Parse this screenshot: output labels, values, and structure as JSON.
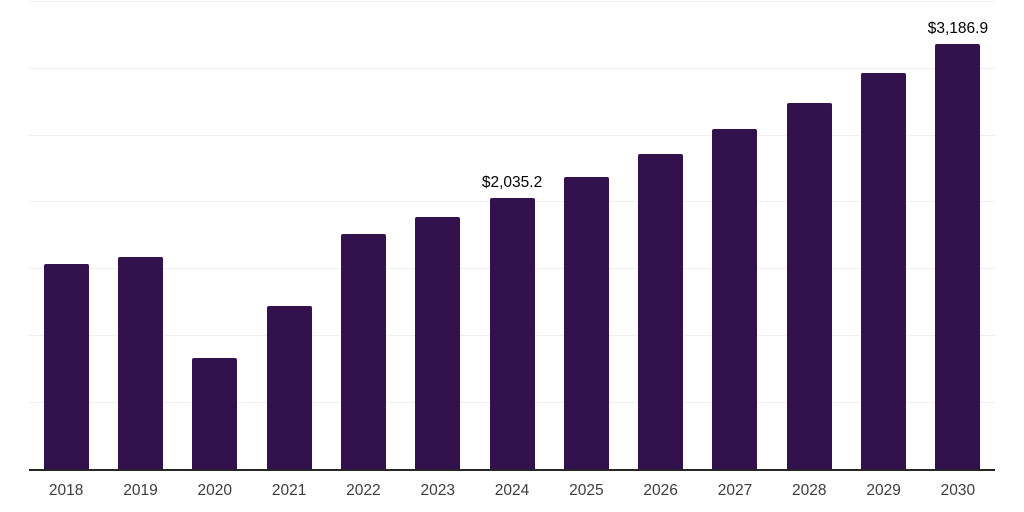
{
  "chart_data": {
    "type": "bar",
    "title": "",
    "xlabel": "",
    "ylabel": "",
    "categories": [
      "2018",
      "2019",
      "2020",
      "2021",
      "2022",
      "2023",
      "2024",
      "2025",
      "2026",
      "2027",
      "2028",
      "2029",
      "2030"
    ],
    "values": [
      1540,
      1590,
      835,
      1225,
      1765,
      1890,
      2035.2,
      2190,
      2360,
      2550,
      2745,
      2965,
      3186.9
    ],
    "data_labels": {
      "2024": "$2,035.2",
      "2030": "$3,186.9"
    },
    "ylim": [
      0,
      3513
    ],
    "gridline_step": 500,
    "grid": "horizontal-only",
    "legend": "none",
    "colors": {
      "bar": "#33114d",
      "axis_line": "#262626",
      "gridline": "#f0f0f0",
      "tick_label": "#3d3d3d",
      "data_label": "#000000",
      "background": "#ffffff"
    }
  }
}
